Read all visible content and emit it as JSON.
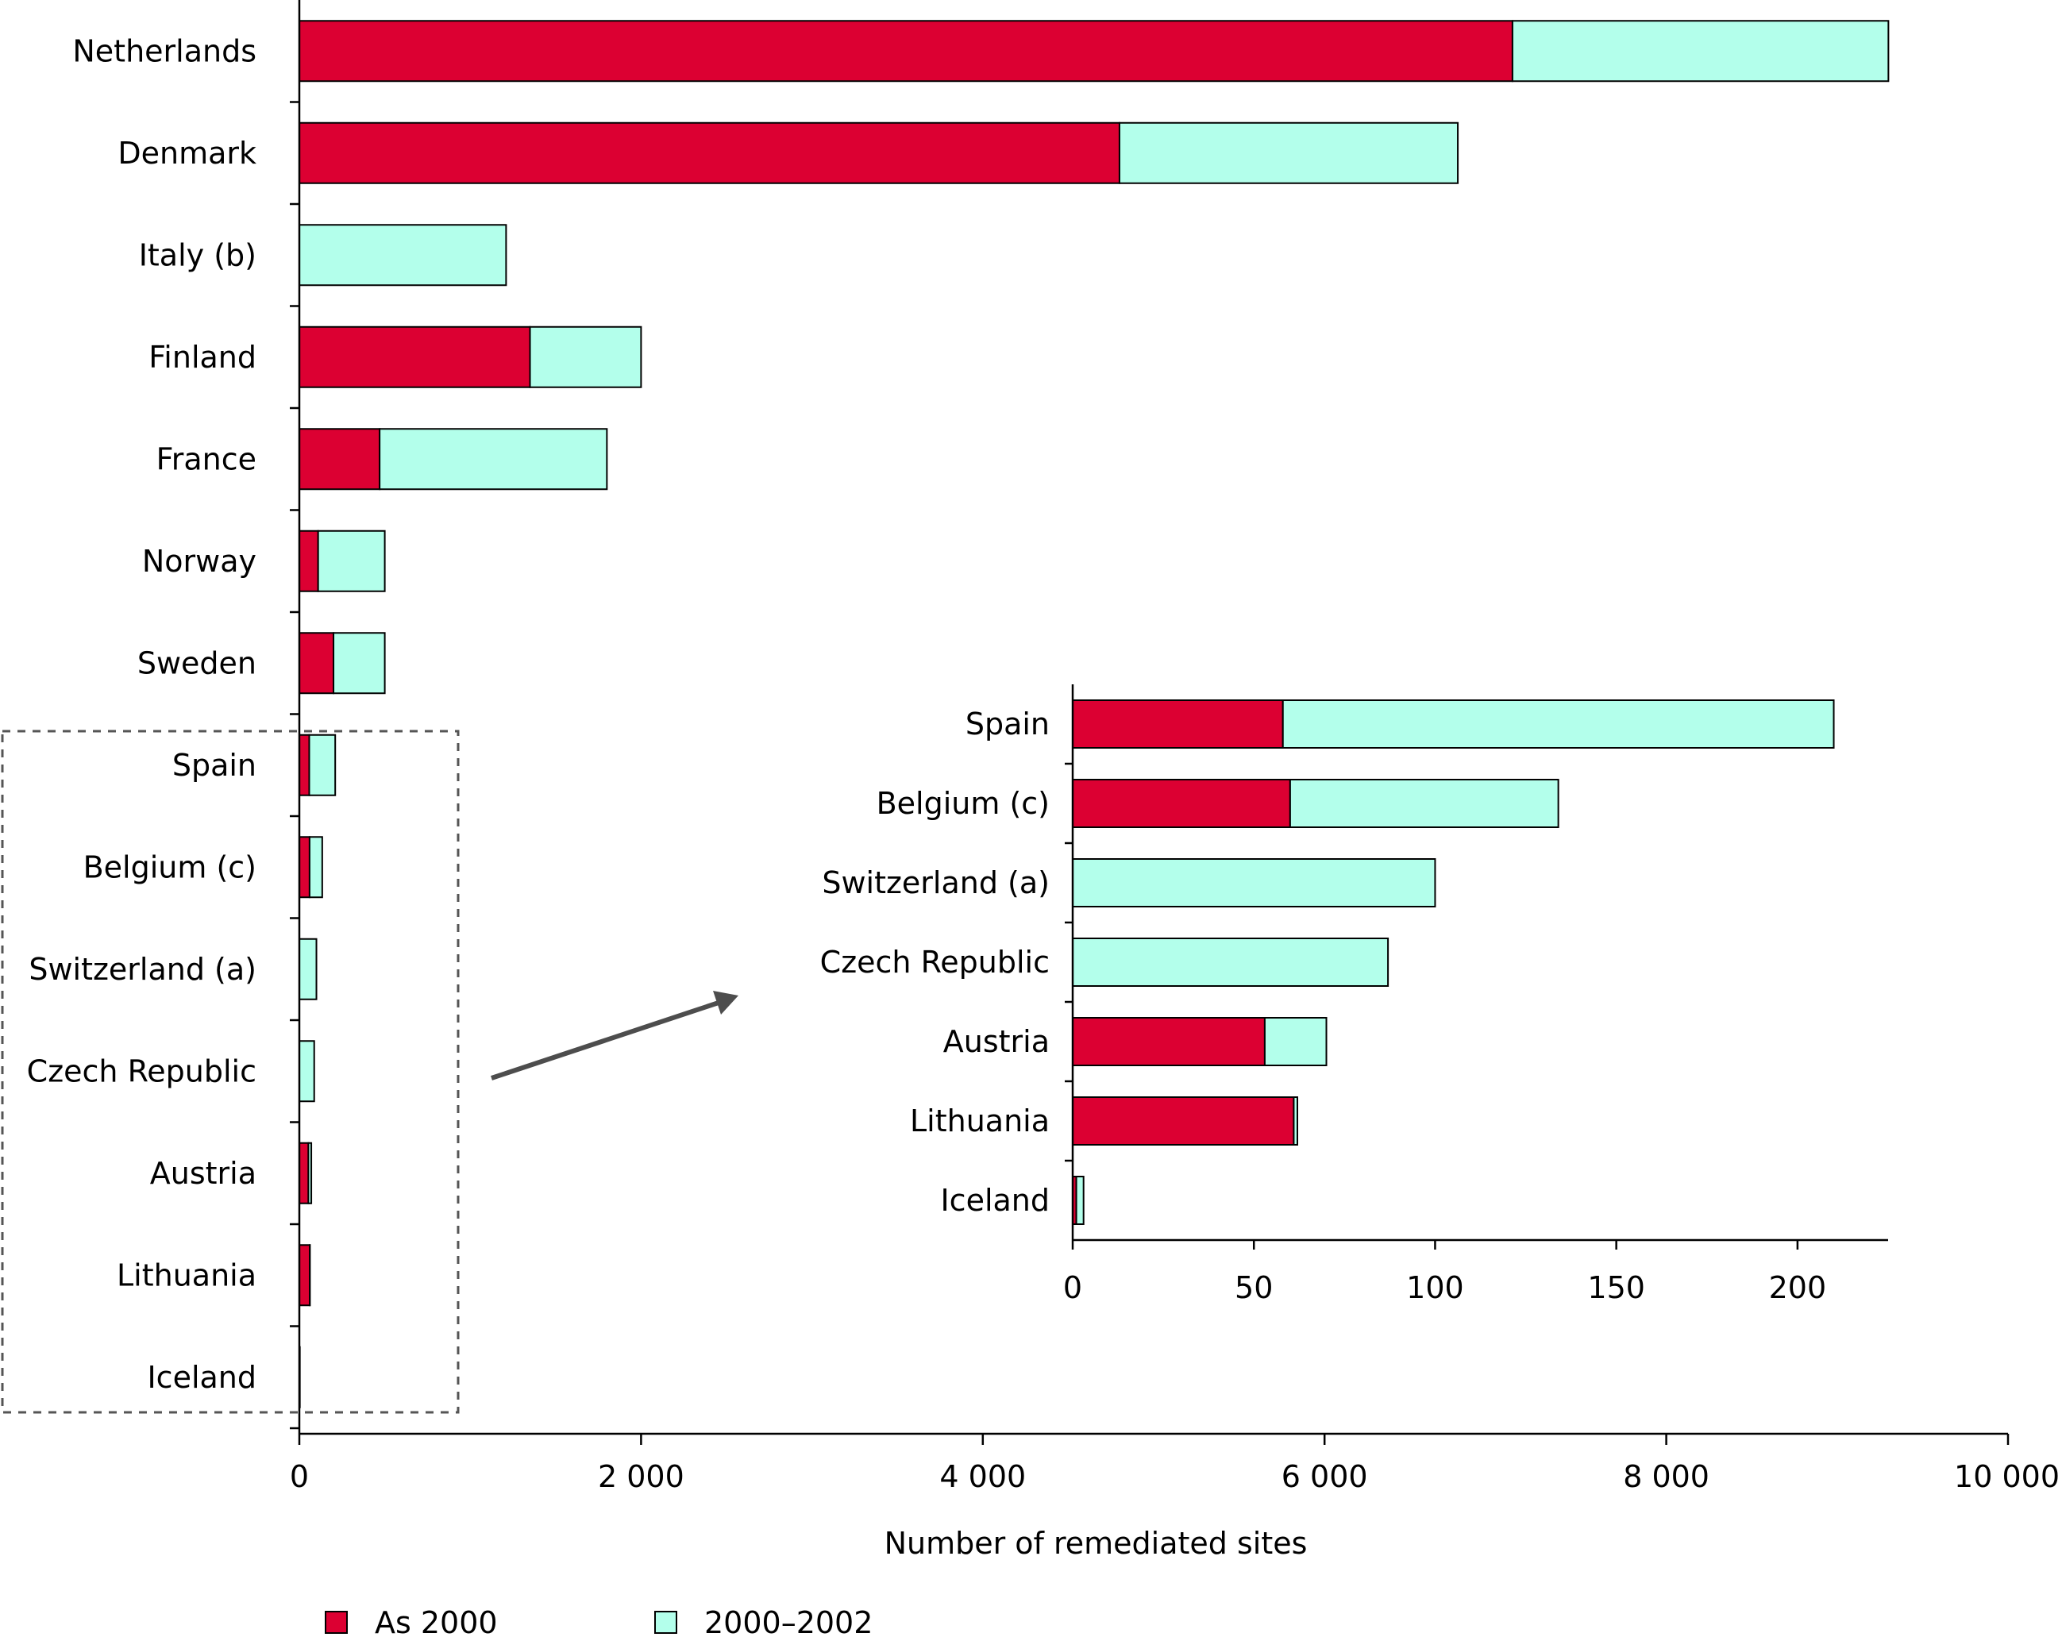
{
  "colors": {
    "as_2000": "#DC0032",
    "y2000_2002": "#B3FFEB",
    "frame": "#555555",
    "arrow": "#4d4d4d"
  },
  "chart_data": [
    {
      "type": "bar",
      "orientation": "horizontal",
      "stacked": true,
      "categories": [
        "Netherlands",
        "Denmark",
        "Italy (b)",
        "Finland",
        "France",
        "Norway",
        "Sweden",
        "Spain",
        "Belgium (c)",
        "Switzerland (a)",
        "Czech Republic",
        "Austria",
        "Lithuania",
        "Iceland"
      ],
      "series": [
        {
          "name": "As 2000",
          "color": "#DC0032",
          "values": [
            7100,
            4800,
            0,
            1350,
            470,
            110,
            200,
            58,
            60,
            0,
            0,
            53,
            61,
            1
          ]
        },
        {
          "name": "2000–2002",
          "color": "#B3FFEB",
          "values": [
            2200,
            1980,
            1210,
            650,
            1330,
            390,
            300,
            152,
            74,
            100,
            87,
            17,
            1,
            2
          ]
        }
      ],
      "xlabel": "Number of remediated sites",
      "xlim": [
        0,
        10000
      ],
      "xticks": [
        0,
        2000,
        4000,
        6000,
        8000,
        10000
      ],
      "xtick_labels": [
        "0",
        "2 000",
        "4 000",
        "6 000",
        "8 000",
        "10 000"
      ],
      "legend": {
        "position": "bottom-left",
        "entries": [
          "As 2000",
          "2000–2002"
        ]
      }
    },
    {
      "type": "bar",
      "orientation": "horizontal",
      "stacked": true,
      "inset": true,
      "categories": [
        "Spain",
        "Belgium (c)",
        "Switzerland (a)",
        "Czech Republic",
        "Austria",
        "Lithuania",
        "Iceland"
      ],
      "series": [
        {
          "name": "As 2000",
          "color": "#DC0032",
          "values": [
            58,
            60,
            0,
            0,
            53,
            61,
            1
          ]
        },
        {
          "name": "2000–2002",
          "color": "#B3FFEB",
          "values": [
            152,
            74,
            100,
            87,
            17,
            1,
            2
          ]
        }
      ],
      "xlim": [
        0,
        225
      ],
      "xticks": [
        0,
        50,
        100,
        150,
        200
      ],
      "xtick_labels": [
        "0",
        "50",
        "100",
        "150",
        "200"
      ]
    }
  ]
}
